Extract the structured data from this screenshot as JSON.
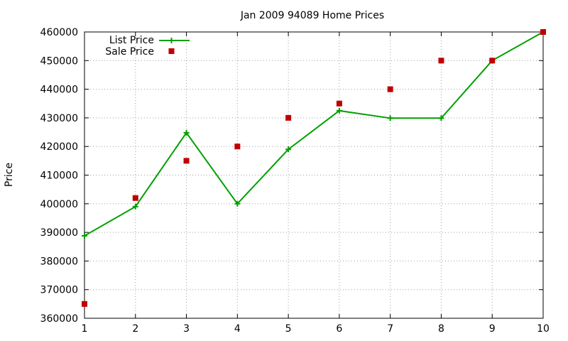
{
  "chart_data": {
    "type": "line",
    "title": "Jan 2009 94089 Home Prices",
    "xlabel": "",
    "ylabel": "Price",
    "xlim": [
      1,
      10
    ],
    "ylim": [
      360000,
      460000
    ],
    "x_ticks": [
      1,
      2,
      3,
      4,
      5,
      6,
      7,
      8,
      9,
      10
    ],
    "y_ticks": [
      360000,
      370000,
      380000,
      390000,
      400000,
      410000,
      420000,
      430000,
      440000,
      450000,
      460000
    ],
    "grid": true,
    "legend_position": "top-left",
    "series": [
      {
        "name": "List Price",
        "style": "line+cross",
        "color": "#00a000",
        "x": [
          1,
          2,
          3,
          4,
          5,
          6,
          7,
          8,
          9,
          10
        ],
        "y": [
          388800,
          399000,
          424800,
          400000,
          419000,
          432500,
          429900,
          429900,
          450000,
          460000
        ]
      },
      {
        "name": "Sale Price",
        "style": "square-points",
        "color": "#c00000",
        "x": [
          1,
          2,
          3,
          4,
          5,
          6,
          7,
          8,
          9,
          10
        ],
        "y": [
          365000,
          402000,
          415000,
          420000,
          430000,
          435000,
          440000,
          450000,
          450000,
          460000
        ]
      }
    ]
  }
}
